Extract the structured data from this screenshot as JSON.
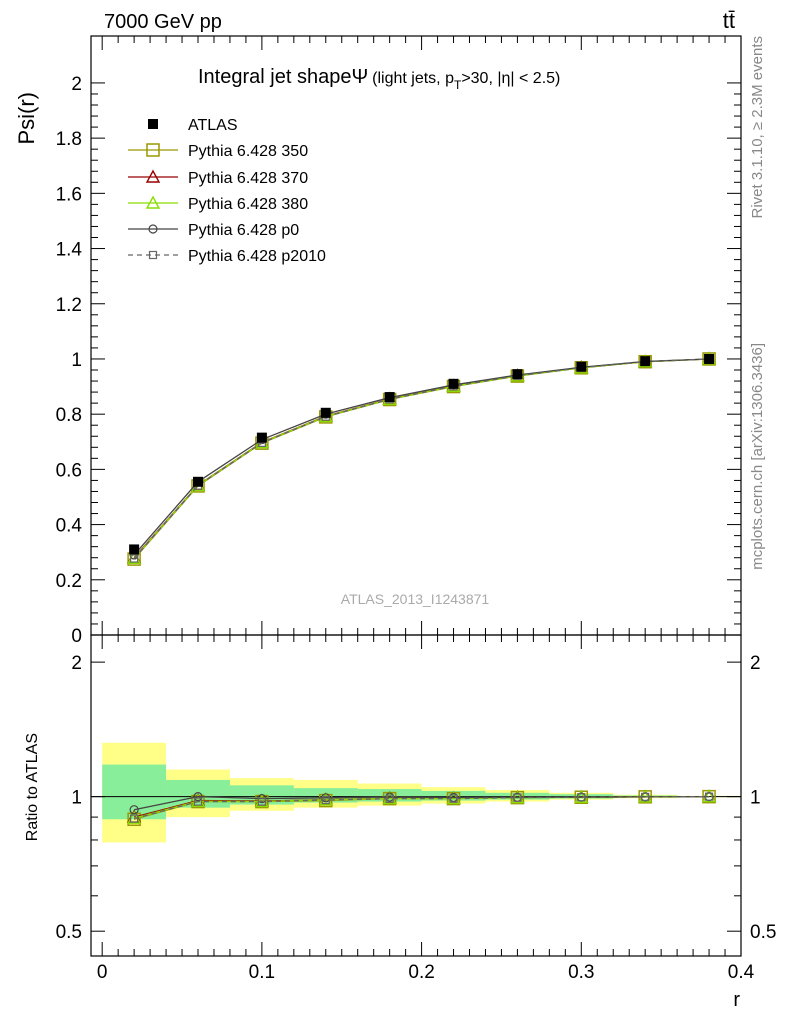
{
  "header": {
    "left": "7000 GeV pp",
    "right": "tt̄"
  },
  "side_labels": {
    "rivet": "Rivet 3.1.10, ≥ 2.3M events",
    "mcplots": "mcplots.cern.ch [arXiv:1306.3436]"
  },
  "colors": {
    "atlas": "#000000",
    "p350": "#999900",
    "p370": "#990000",
    "p380": "#88dd00",
    "p0": "#444444",
    "p2010": "#666666",
    "band_yellow": "#ffff88",
    "band_green": "#88ee99"
  },
  "chart_data": [
    {
      "type": "line",
      "title_main": "Integral jet shape",
      "title_symbol": "Ψ",
      "title_detail_a": "(light jets, p",
      "title_detail_sub": "T",
      "title_detail_b": ">30, |η| < 2.5)",
      "ylabel": "Psi(r)",
      "watermark": "ATLAS_2013_I1243871",
      "xlim": [
        -0.007,
        0.4
      ],
      "ylim": [
        0,
        2.17
      ],
      "yticks": [
        0,
        0.2,
        0.4,
        0.6,
        0.8,
        1,
        1.2,
        1.4,
        1.6,
        1.8,
        2
      ],
      "ytick_labels": [
        "0",
        "0.2",
        "0.4",
        "0.6",
        "0.8",
        "1",
        "1.2",
        "1.4",
        "1.6",
        "1.8",
        "2"
      ],
      "legend_position": "top-left",
      "x": [
        0.02,
        0.06,
        0.1,
        0.14,
        0.18,
        0.22,
        0.26,
        0.3,
        0.34,
        0.38
      ],
      "atlas": {
        "name": "ATLAS",
        "values": [
          0.31,
          0.555,
          0.715,
          0.805,
          0.862,
          0.91,
          0.945,
          0.972,
          0.992,
          1.0
        ]
      },
      "series": [
        {
          "name": "Pythia 6.428 350",
          "marker": "square",
          "dashed": false,
          "color_key": "p350",
          "values": [
            0.275,
            0.54,
            0.695,
            0.79,
            0.853,
            0.9,
            0.938,
            0.968,
            0.99,
            1.0
          ]
        },
        {
          "name": "Pythia 6.428 370",
          "marker": "triangle",
          "dashed": false,
          "color_key": "p370",
          "values": [
            0.28,
            0.543,
            0.698,
            0.793,
            0.855,
            0.902,
            0.94,
            0.969,
            0.99,
            1.0
          ]
        },
        {
          "name": "Pythia 6.428 380",
          "marker": "triangle",
          "dashed": false,
          "color_key": "p380",
          "values": [
            0.278,
            0.542,
            0.697,
            0.792,
            0.854,
            0.901,
            0.939,
            0.968,
            0.99,
            1.0
          ]
        },
        {
          "name": "Pythia 6.428 p0",
          "marker": "circle",
          "dashed": false,
          "color_key": "p0",
          "values": [
            0.29,
            0.555,
            0.708,
            0.8,
            0.86,
            0.906,
            0.942,
            0.97,
            0.991,
            1.0
          ]
        },
        {
          "name": "Pythia 6.428 p2010",
          "marker": "square-small",
          "dashed": true,
          "color_key": "p2010",
          "values": [
            0.277,
            0.541,
            0.696,
            0.791,
            0.854,
            0.901,
            0.939,
            0.968,
            0.99,
            1.0
          ]
        }
      ]
    },
    {
      "type": "line",
      "ylabel": "Ratio to ATLAS",
      "xlabel": "r",
      "log_y": true,
      "xlim": [
        -0.007,
        0.4
      ],
      "ylim": [
        0.44,
        2.3
      ],
      "xticks": [
        0,
        0.1,
        0.2,
        0.3,
        0.4
      ],
      "xtick_labels": [
        "0",
        "0.1",
        "0.2",
        "0.3",
        "0.4"
      ],
      "yticks": [
        0.5,
        1,
        2
      ],
      "ytick_labels": [
        "0.5",
        "1",
        "2"
      ],
      "band_x_edges": [
        0,
        0.04,
        0.08,
        0.12,
        0.16,
        0.2,
        0.24,
        0.28,
        0.32,
        0.36,
        0.4
      ],
      "band_yellow": [
        [
          0.79,
          1.32
        ],
        [
          0.9,
          1.15
        ],
        [
          0.93,
          1.1
        ],
        [
          0.945,
          1.09
        ],
        [
          0.955,
          1.07
        ],
        [
          0.965,
          1.05
        ],
        [
          0.975,
          1.035
        ],
        [
          0.985,
          1.02
        ],
        [
          0.992,
          1.01
        ],
        [
          0.997,
          1.004
        ]
      ],
      "band_green": [
        [
          0.89,
          1.18
        ],
        [
          0.945,
          1.09
        ],
        [
          0.96,
          1.06
        ],
        [
          0.97,
          1.045
        ],
        [
          0.975,
          1.04
        ],
        [
          0.98,
          1.03
        ],
        [
          0.985,
          1.02
        ],
        [
          0.99,
          1.013
        ],
        [
          0.995,
          1.006
        ],
        [
          0.998,
          1.003
        ]
      ],
      "series": [
        {
          "name": "Pythia 6.428 350",
          "values": [
            0.89,
            0.975,
            0.975,
            0.98,
            0.99,
            0.99,
            0.995,
            0.997,
            0.999,
            1.0
          ]
        },
        {
          "name": "Pythia 6.428 370",
          "values": [
            0.9,
            0.98,
            0.978,
            0.985,
            0.992,
            0.991,
            0.996,
            0.997,
            0.999,
            1.0
          ]
        },
        {
          "name": "Pythia 6.428 380",
          "values": [
            0.895,
            0.977,
            0.976,
            0.984,
            0.991,
            0.99,
            0.995,
            0.997,
            0.999,
            1.0
          ]
        },
        {
          "name": "Pythia 6.428 p0",
          "values": [
            0.935,
            1.0,
            0.99,
            0.994,
            0.998,
            0.996,
            0.997,
            0.998,
            0.999,
            1.0
          ]
        },
        {
          "name": "Pythia 6.428 p2010",
          "values": [
            0.893,
            0.975,
            0.975,
            0.983,
            0.99,
            0.99,
            0.995,
            0.997,
            0.999,
            1.0
          ]
        }
      ]
    }
  ]
}
